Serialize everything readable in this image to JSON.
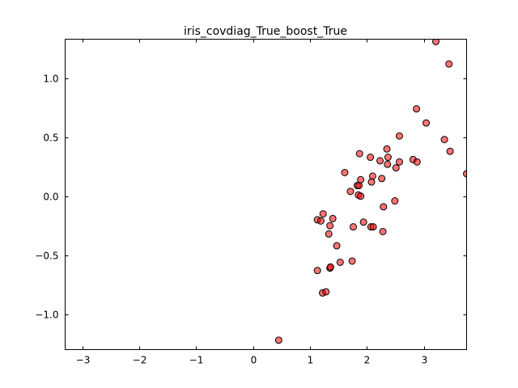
{
  "chart_data": {
    "type": "scatter",
    "title": "iris_covdiag_True_boost_True",
    "xlabel": "",
    "ylabel": "",
    "xlim": [
      -3.3,
      3.75
    ],
    "ylim": [
      -1.3,
      1.33
    ],
    "xticks": [
      -3,
      -2,
      -1,
      0,
      1,
      2,
      3
    ],
    "xtick_labels": [
      "−3",
      "−2",
      "−1",
      "0",
      "1",
      "2",
      "3"
    ],
    "yticks": [
      -1.0,
      -0.5,
      0.0,
      0.5,
      1.0
    ],
    "ytick_labels": [
      "−1.0",
      "−0.5",
      "0.0",
      "0.5",
      "1.0"
    ],
    "grid": false,
    "marker_color": "#ff0000",
    "points": [
      {
        "x": 0.45,
        "y": -1.22
      },
      {
        "x": 1.22,
        "y": -0.82
      },
      {
        "x": 1.28,
        "y": -0.81
      },
      {
        "x": 1.13,
        "y": -0.63
      },
      {
        "x": 1.35,
        "y": -0.61
      },
      {
        "x": 1.36,
        "y": -0.6
      },
      {
        "x": 1.53,
        "y": -0.56
      },
      {
        "x": 1.74,
        "y": -0.55
      },
      {
        "x": 1.47,
        "y": -0.42
      },
      {
        "x": 1.33,
        "y": -0.32
      },
      {
        "x": 2.28,
        "y": -0.3
      },
      {
        "x": 1.35,
        "y": -0.25
      },
      {
        "x": 1.76,
        "y": -0.26
      },
      {
        "x": 2.07,
        "y": -0.26
      },
      {
        "x": 2.11,
        "y": -0.26
      },
      {
        "x": 1.13,
        "y": -0.2
      },
      {
        "x": 1.19,
        "y": -0.21
      },
      {
        "x": 1.4,
        "y": -0.19
      },
      {
        "x": 1.94,
        "y": -0.22
      },
      {
        "x": 1.23,
        "y": -0.15
      },
      {
        "x": 2.29,
        "y": -0.09
      },
      {
        "x": 2.49,
        "y": -0.04
      },
      {
        "x": 1.85,
        "y": 0.01
      },
      {
        "x": 1.89,
        "y": 0.0
      },
      {
        "x": 1.71,
        "y": 0.04
      },
      {
        "x": 1.83,
        "y": 0.09
      },
      {
        "x": 1.86,
        "y": 0.09
      },
      {
        "x": 2.08,
        "y": 0.12
      },
      {
        "x": 1.89,
        "y": 0.14
      },
      {
        "x": 2.26,
        "y": 0.15
      },
      {
        "x": 2.1,
        "y": 0.17
      },
      {
        "x": 1.61,
        "y": 0.2
      },
      {
        "x": 3.75,
        "y": 0.19
      },
      {
        "x": 2.36,
        "y": 0.27
      },
      {
        "x": 2.51,
        "y": 0.24
      },
      {
        "x": 2.23,
        "y": 0.3
      },
      {
        "x": 2.57,
        "y": 0.29
      },
      {
        "x": 2.81,
        "y": 0.31
      },
      {
        "x": 2.88,
        "y": 0.29
      },
      {
        "x": 2.06,
        "y": 0.33
      },
      {
        "x": 2.37,
        "y": 0.33
      },
      {
        "x": 1.87,
        "y": 0.36
      },
      {
        "x": 2.35,
        "y": 0.4
      },
      {
        "x": 3.46,
        "y": 0.38
      },
      {
        "x": 3.36,
        "y": 0.48
      },
      {
        "x": 2.57,
        "y": 0.51
      },
      {
        "x": 3.04,
        "y": 0.62
      },
      {
        "x": 2.87,
        "y": 0.74
      },
      {
        "x": 3.44,
        "y": 1.12
      },
      {
        "x": 3.21,
        "y": 1.31
      }
    ]
  }
}
